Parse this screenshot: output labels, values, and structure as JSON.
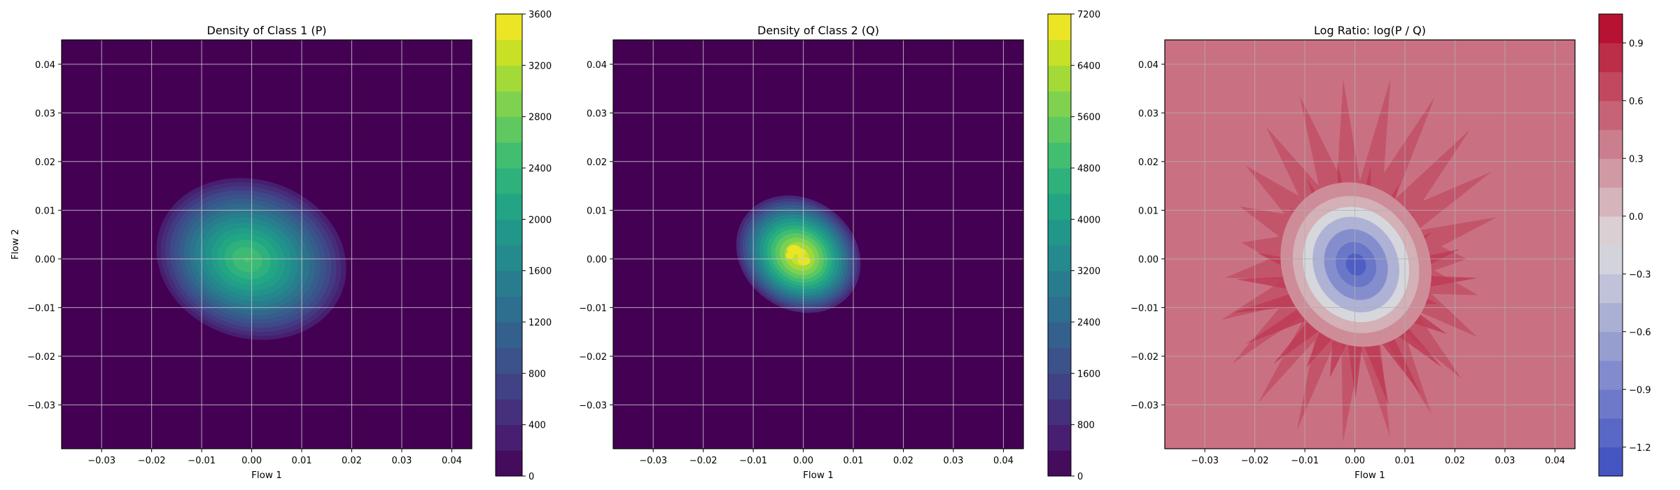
{
  "chart_data": [
    {
      "type": "heatmap",
      "title": "Density of Class 1 (P)",
      "xlabel": "Flow 1",
      "ylabel": "Flow 2",
      "xlim": [
        -0.038,
        0.044
      ],
      "ylim": [
        -0.039,
        0.045
      ],
      "xticks": [
        -0.03,
        -0.02,
        -0.01,
        0.0,
        0.01,
        0.02,
        0.03,
        0.04
      ],
      "xtick_labels": [
        "−0.03",
        "−0.02",
        "−0.01",
        "0.00",
        "0.01",
        "0.02",
        "0.03",
        "0.04"
      ],
      "yticks": [
        -0.03,
        -0.02,
        -0.01,
        0.0,
        0.01,
        0.02,
        0.03,
        0.04
      ],
      "ytick_labels": [
        "−0.03",
        "−0.02",
        "−0.01",
        "0.00",
        "0.01",
        "0.02",
        "0.03",
        "0.04"
      ],
      "grid": true,
      "colormap": "viridis",
      "density_peak": {
        "x": 0.0,
        "y": 0.0,
        "max": 2600
      },
      "colorbar": {
        "range": [
          0,
          3600
        ],
        "ticks": [
          0,
          400,
          800,
          1200,
          1600,
          2000,
          2400,
          2800,
          3200,
          3600
        ],
        "tick_labels": [
          "0",
          "400",
          "800",
          "1200",
          "1600",
          "2000",
          "2400",
          "2800",
          "3200",
          "3600"
        ]
      }
    },
    {
      "type": "heatmap",
      "title": "Density of Class 2 (Q)",
      "xlabel": "Flow 1",
      "ylabel": "",
      "xlim": [
        -0.038,
        0.044
      ],
      "ylim": [
        -0.039,
        0.045
      ],
      "xticks": [
        -0.03,
        -0.02,
        -0.01,
        0.0,
        0.01,
        0.02,
        0.03,
        0.04
      ],
      "xtick_labels": [
        "−0.03",
        "−0.02",
        "−0.01",
        "0.00",
        "0.01",
        "0.02",
        "0.03",
        "0.04"
      ],
      "yticks": [
        -0.03,
        -0.02,
        -0.01,
        0.0,
        0.01,
        0.02,
        0.03,
        0.04
      ],
      "ytick_labels": [
        "−0.03",
        "−0.02",
        "−0.01",
        "0.00",
        "0.01",
        "0.02",
        "0.03",
        "0.04"
      ],
      "grid": true,
      "colormap": "viridis",
      "density_peak": {
        "x": -0.001,
        "y": 0.001,
        "max": 7000
      },
      "colorbar": {
        "range": [
          0,
          7200
        ],
        "ticks": [
          0,
          800,
          1600,
          2400,
          3200,
          4000,
          4800,
          5600,
          6400,
          7200
        ],
        "tick_labels": [
          "0",
          "800",
          "1600",
          "2400",
          "3200",
          "4000",
          "4800",
          "5600",
          "6400",
          "7200"
        ]
      }
    },
    {
      "type": "heatmap",
      "title": "Log Ratio: log(P / Q)",
      "xlabel": "Flow 1",
      "ylabel": "",
      "xlim": [
        -0.038,
        0.044
      ],
      "ylim": [
        -0.039,
        0.045
      ],
      "xticks": [
        -0.03,
        -0.02,
        -0.01,
        0.0,
        0.01,
        0.02,
        0.03,
        0.04
      ],
      "xtick_labels": [
        "−0.03",
        "−0.02",
        "−0.01",
        "0.00",
        "0.01",
        "0.02",
        "0.03",
        "0.04"
      ],
      "yticks": [
        -0.03,
        -0.02,
        -0.01,
        0.0,
        0.01,
        0.02,
        0.03,
        0.04
      ],
      "ytick_labels": [
        "−0.03",
        "−0.02",
        "−0.01",
        "0.00",
        "0.01",
        "0.02",
        "0.03",
        "0.04"
      ],
      "grid": true,
      "colormap": "coolwarm",
      "center_min": -1.2,
      "background_value": 0.45,
      "colorbar": {
        "range": [
          -1.35,
          1.05
        ],
        "ticks": [
          -1.2,
          -0.9,
          -0.6,
          -0.3,
          0.0,
          0.3,
          0.6,
          0.9
        ],
        "tick_labels": [
          "−1.2",
          "−0.9",
          "−0.6",
          "−0.3",
          "0.0",
          "0.3",
          "0.6",
          "0.9"
        ]
      }
    }
  ]
}
